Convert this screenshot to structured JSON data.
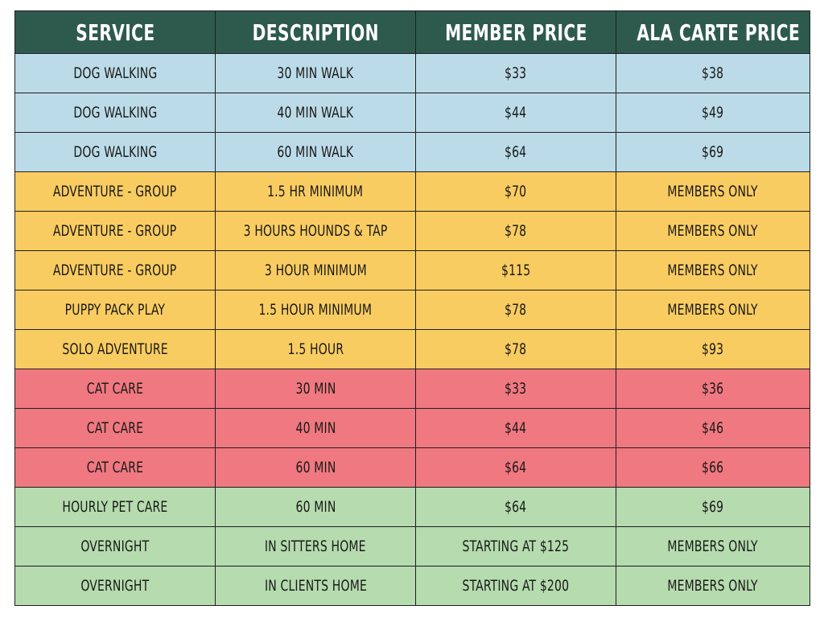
{
  "colors": {
    "header": "#2e5a4e",
    "dog_walking": "#bcdbe8",
    "adventure": "#f9cc61",
    "cat_care": "#f07880",
    "pet_care": "#b5dbae"
  },
  "table": {
    "headers": [
      "SERVICE",
      "DESCRIPTION",
      "MEMBER PRICE",
      "ALA CARTE PRICE"
    ],
    "rows": [
      {
        "group": "dog_walking",
        "cells": [
          "DOG WALKING",
          "30 MIN WALK",
          "$33",
          "$38"
        ]
      },
      {
        "group": "dog_walking",
        "cells": [
          "DOG WALKING",
          "40 MIN WALK",
          "$44",
          "$49"
        ]
      },
      {
        "group": "dog_walking",
        "cells": [
          "DOG WALKING",
          "60 MIN WALK",
          "$64",
          "$69"
        ]
      },
      {
        "group": "adventure",
        "cells": [
          "ADVENTURE - GROUP",
          "1.5 HR MINIMUM",
          "$70",
          "MEMBERS ONLY"
        ]
      },
      {
        "group": "adventure",
        "cells": [
          "ADVENTURE - GROUP",
          "3 HOURS HOUNDS & TAP",
          "$78",
          "MEMBERS ONLY"
        ]
      },
      {
        "group": "adventure",
        "cells": [
          "ADVENTURE - GROUP",
          "3 HOUR MINIMUM",
          "$115",
          "MEMBERS ONLY"
        ]
      },
      {
        "group": "adventure",
        "cells": [
          "PUPPY PACK PLAY",
          "1.5 HOUR MINIMUM",
          "$78",
          "MEMBERS ONLY"
        ]
      },
      {
        "group": "adventure",
        "cells": [
          "SOLO ADVENTURE",
          "1.5 HOUR",
          "$78",
          "$93"
        ]
      },
      {
        "group": "cat_care",
        "cells": [
          "CAT CARE",
          "30 MIN",
          "$33",
          "$36"
        ]
      },
      {
        "group": "cat_care",
        "cells": [
          "CAT CARE",
          "40 MIN",
          "$44",
          "$46"
        ]
      },
      {
        "group": "cat_care",
        "cells": [
          "CAT CARE",
          "60 MIN",
          "$64",
          "$66"
        ]
      },
      {
        "group": "pet_care",
        "cells": [
          "HOURLY PET CARE",
          "60 MIN",
          "$64",
          "$69"
        ]
      },
      {
        "group": "pet_care",
        "cells": [
          "OVERNIGHT",
          "IN SITTERS HOME",
          "STARTING AT $125",
          "MEMBERS ONLY"
        ]
      },
      {
        "group": "pet_care",
        "cells": [
          "OVERNIGHT",
          "IN CLIENTS HOME",
          "STARTING AT $200",
          "MEMBERS ONLY"
        ]
      }
    ]
  }
}
